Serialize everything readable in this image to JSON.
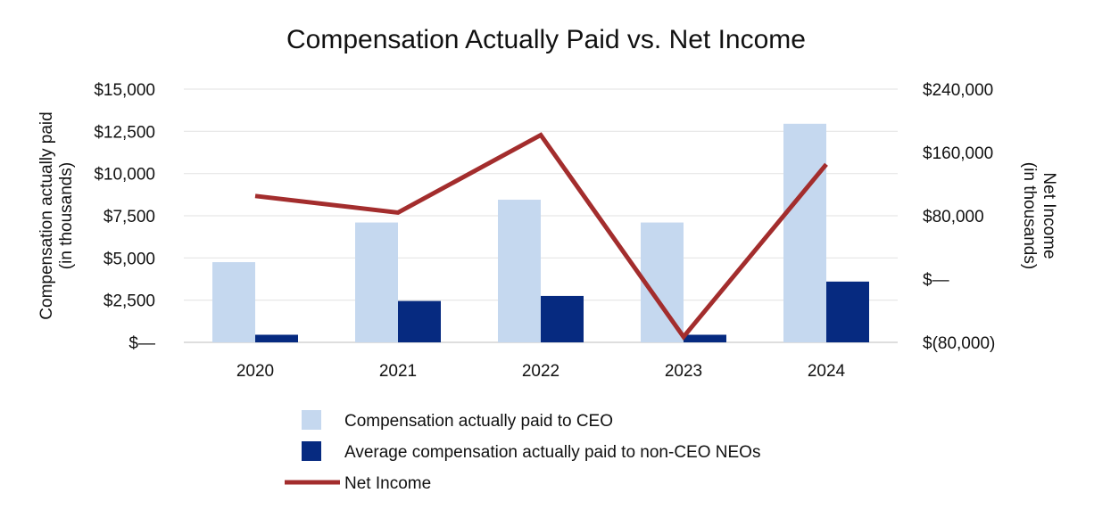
{
  "chart_data": {
    "type": "bar",
    "title": "Compensation Actually Paid vs. Net Income",
    "categories": [
      "2020",
      "2021",
      "2022",
      "2023",
      "2024"
    ],
    "y_left": {
      "title_lines": [
        "Compensation actually paid",
        "(in thousands)"
      ],
      "ylim": [
        0,
        15000
      ],
      "ticks": [
        0,
        2500,
        5000,
        7500,
        10000,
        12500,
        15000
      ],
      "tick_labels": [
        "$—",
        "$2,500",
        "$5,000",
        "$7,500",
        "$10,000",
        "$12,500",
        "$15,000"
      ]
    },
    "y_right": {
      "title_lines": [
        "Net Income",
        "(in thousands)"
      ],
      "ylim": [
        -80000,
        240000
      ],
      "ticks": [
        -80000,
        0,
        80000,
        160000,
        240000
      ],
      "tick_labels": [
        "$(80,000)",
        "$—",
        "$80,000",
        "$160,000",
        "$240,000"
      ]
    },
    "series": [
      {
        "name": "Compensation actually paid to CEO",
        "type": "bar",
        "axis": "left",
        "color": "#c5d8ef",
        "values": [
          4750,
          7100,
          8450,
          7100,
          12950
        ]
      },
      {
        "name": "Average compensation actually paid to non-CEO NEOs",
        "type": "bar",
        "axis": "left",
        "color": "#062a80",
        "values": [
          450,
          2450,
          2750,
          450,
          3600
        ]
      },
      {
        "name": "Net Income",
        "type": "line",
        "axis": "right",
        "color": "#a32d2d",
        "values": [
          105000,
          84000,
          182000,
          -73000,
          145000
        ]
      }
    ],
    "grid": true,
    "legend_position": "bottom"
  }
}
